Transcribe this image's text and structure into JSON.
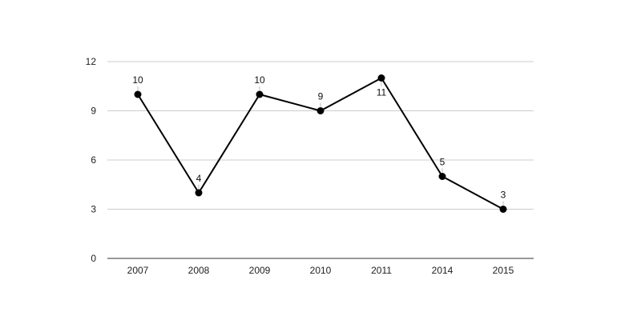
{
  "chart_data": {
    "type": "line",
    "categories": [
      "2007",
      "2008",
      "2009",
      "2010",
      "2011",
      "2014",
      "2015"
    ],
    "series": [
      {
        "values": [
          10,
          4,
          10,
          9,
          11,
          5,
          3
        ]
      }
    ],
    "data_labels": [
      "10",
      "4",
      "10",
      "9",
      "11",
      "5",
      "3"
    ],
    "yticks": [
      "0",
      "3",
      "6",
      "9",
      "12"
    ],
    "ylim": [
      0,
      12
    ],
    "grid": true,
    "legend": "none",
    "colors": {
      "series": "#000000",
      "grid": "#cccccc",
      "axis": "#333333"
    }
  }
}
